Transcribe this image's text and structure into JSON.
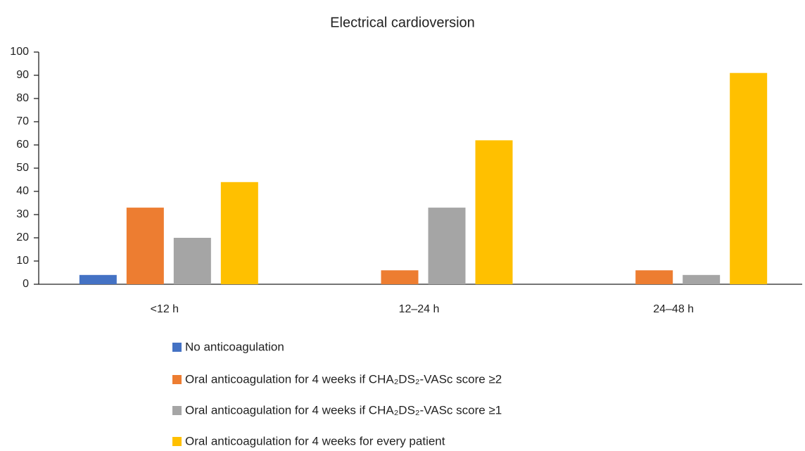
{
  "chart_data": {
    "type": "bar",
    "title": "Electrical cardioversion",
    "categories": [
      "<12 h",
      "12–24 h",
      "24–48 h"
    ],
    "series": [
      {
        "name": "No anticoagulation",
        "color": "#4472c4",
        "values": [
          4,
          0,
          0
        ]
      },
      {
        "name": "Oral anticoagulation for 4 weeks if CHA₂DS₂-VASc score ≥2",
        "color": "#ed7d31",
        "values": [
          33,
          6,
          6
        ]
      },
      {
        "name": "Oral anticoagulation for 4 weeks if CHA₂DS₂-VASc score ≥1",
        "color": "#a5a5a5",
        "values": [
          20,
          33,
          4
        ]
      },
      {
        "name": "Oral anticoagulation for 4 weeks for every patient",
        "color": "#ffc000",
        "values": [
          44,
          62,
          91
        ]
      }
    ],
    "ylim": [
      0,
      100
    ],
    "yticks": [
      0,
      10,
      20,
      30,
      40,
      50,
      60,
      70,
      80,
      90,
      100
    ]
  }
}
